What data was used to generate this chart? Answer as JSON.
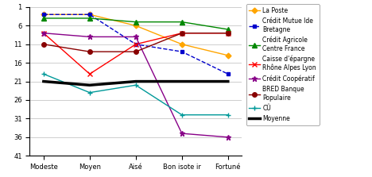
{
  "categories": [
    "Modeste",
    "Moyen",
    "Aisé",
    "Bon isote ir",
    "Fortuné"
  ],
  "series": [
    {
      "label": "La Poste",
      "color": "#FFA500",
      "marker": "D",
      "markersize": 3.5,
      "linewidth": 1.0,
      "linestyle": "-",
      "values": [
        3,
        3,
        6,
        11,
        14
      ]
    },
    {
      "label": "Crédit Mutue lde\nBretagne",
      "color": "#0000CC",
      "marker": "s",
      "markersize": 3.5,
      "linewidth": 1.0,
      "linestyle": "--",
      "values": [
        3,
        3,
        11,
        13,
        19
      ]
    },
    {
      "label": "Crédit Agricole\nCentre France",
      "color": "#008800",
      "marker": "^",
      "markersize": 4,
      "linewidth": 1.0,
      "linestyle": "-",
      "values": [
        4,
        4,
        5,
        5,
        7
      ]
    },
    {
      "label": "Caisse d'épargne\nRhône Alpes Lyon",
      "color": "#FF0000",
      "marker": "x",
      "markersize": 5,
      "linewidth": 1.0,
      "linestyle": "-",
      "values": [
        8,
        19,
        11,
        8,
        8
      ]
    },
    {
      "label": "Crédit Coopératif",
      "color": "#880088",
      "marker": "*",
      "markersize": 5,
      "linewidth": 1.0,
      "linestyle": "-",
      "values": [
        8,
        9,
        9,
        35,
        36
      ]
    },
    {
      "label": "BRED Banque\nPopulaire",
      "color": "#880000",
      "marker": "o",
      "markersize": 4,
      "linewidth": 1.0,
      "linestyle": "-",
      "values": [
        11,
        13,
        13,
        8,
        8
      ]
    },
    {
      "label": "CÛ",
      "color": "#009999",
      "marker": "+",
      "markersize": 5,
      "linewidth": 1.0,
      "linestyle": "-",
      "values": [
        19,
        24,
        22,
        30,
        30
      ]
    },
    {
      "label": "Moyenne",
      "color": "#000000",
      "marker": "",
      "markersize": 0,
      "linewidth": 2.5,
      "linestyle": "-",
      "values": [
        21,
        22,
        21,
        21,
        21
      ]
    }
  ],
  "ylim": [
    41,
    1
  ],
  "yticks": [
    1,
    6,
    11,
    16,
    21,
    26,
    31,
    36,
    41
  ],
  "ylabel": "",
  "xlabel": "",
  "background_color": "#FFFFFF",
  "plot_bg_color": "#FFFFFF",
  "grid_color": "#BBBBBB",
  "figsize": [
    4.68,
    2.23
  ],
  "dpi": 100,
  "legend_fontsize": 5.5,
  "tick_fontsize": 6
}
